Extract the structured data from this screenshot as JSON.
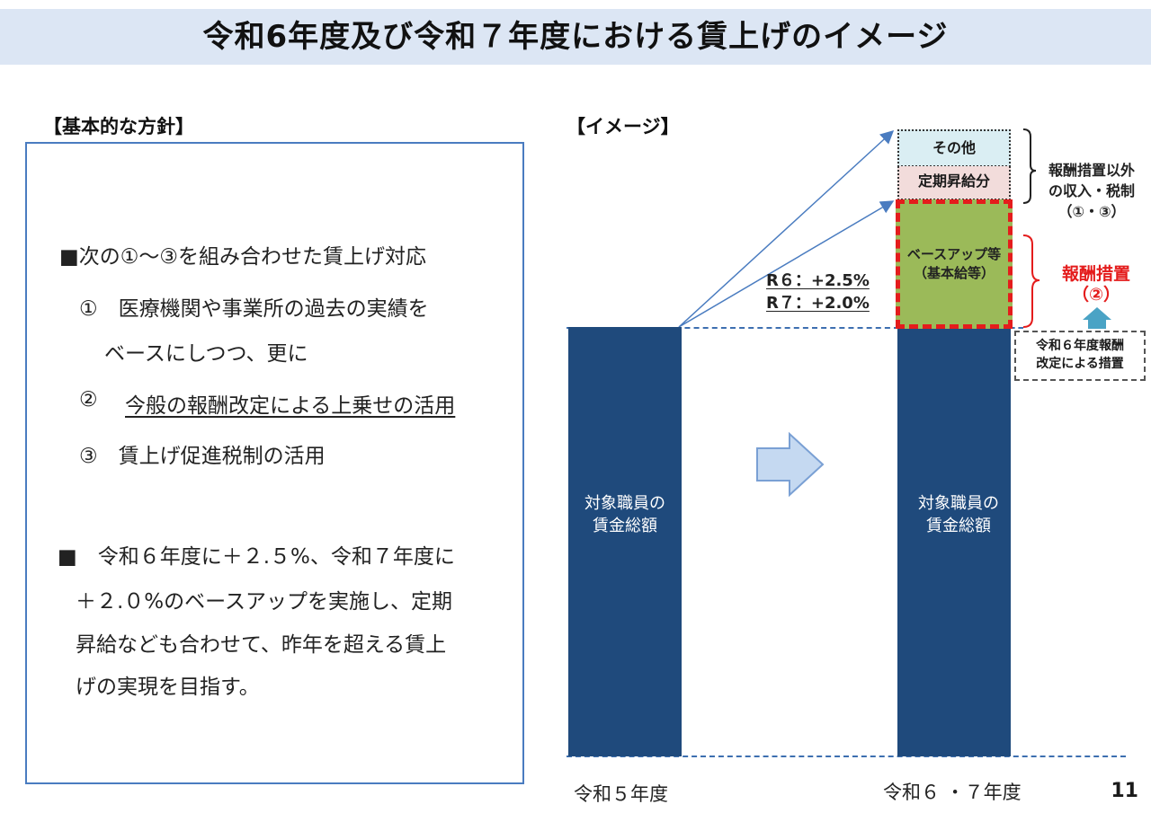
{
  "title": "令和6年度及び令和７年度における賃上げのイメージ",
  "policy": {
    "heading": "【基本的な方針】",
    "bullet1": "■次の①～③を組み合わせた賃上げ対応",
    "item1_line1": "①　医療機関や事業所の過去の実績を",
    "item1_line2": "ベースにしつつ、更に",
    "item2_num": "②",
    "item2_text": "今般の報酬改定による上乗せの活用",
    "item3": "③　賃上げ促進税制の活用",
    "bullet2_line1": "■　令和６年度に＋２.５%、令和７年度に",
    "bullet2_line2": "＋２.０%のベースアップを実施し、定期",
    "bullet2_line3": "昇給なども合わせて、昨年を超える賃上",
    "bullet2_line4": "げの実現を目指す。"
  },
  "image_section": {
    "heading": "【イメージ】",
    "bar_left": {
      "label_line1": "対象職員の",
      "label_line2": "賃金総額",
      "x_label": "令和５年度"
    },
    "bar_right": {
      "label_line1": "対象職員の",
      "label_line2": "賃金総額",
      "x_label": "令和６ ・７年度"
    },
    "seg_other": "その他",
    "seg_periodic": "定期昇給分",
    "seg_base_line1": "ベースアップ等",
    "seg_base_line2": "（基本給等）",
    "rate_r6": "R６：+2.5%",
    "rate_r7": "R７：+2.0%",
    "bracket_black": {
      "line1": "報酬措置以外",
      "line2": "の収入・税制",
      "line3": "（①・③）"
    },
    "bracket_red": {
      "line1": "報酬措置",
      "line2": "（②）"
    },
    "note_line1": "令和６年度報酬",
    "note_line2": "改定による措置"
  },
  "colors": {
    "bar": "#1f4a7c",
    "base_up": "#9bba59",
    "red": "#e41c1c",
    "other": "#daeef3",
    "periodic": "#f2dcdb",
    "title_bg": "#dce6f4"
  },
  "page_number": "11"
}
